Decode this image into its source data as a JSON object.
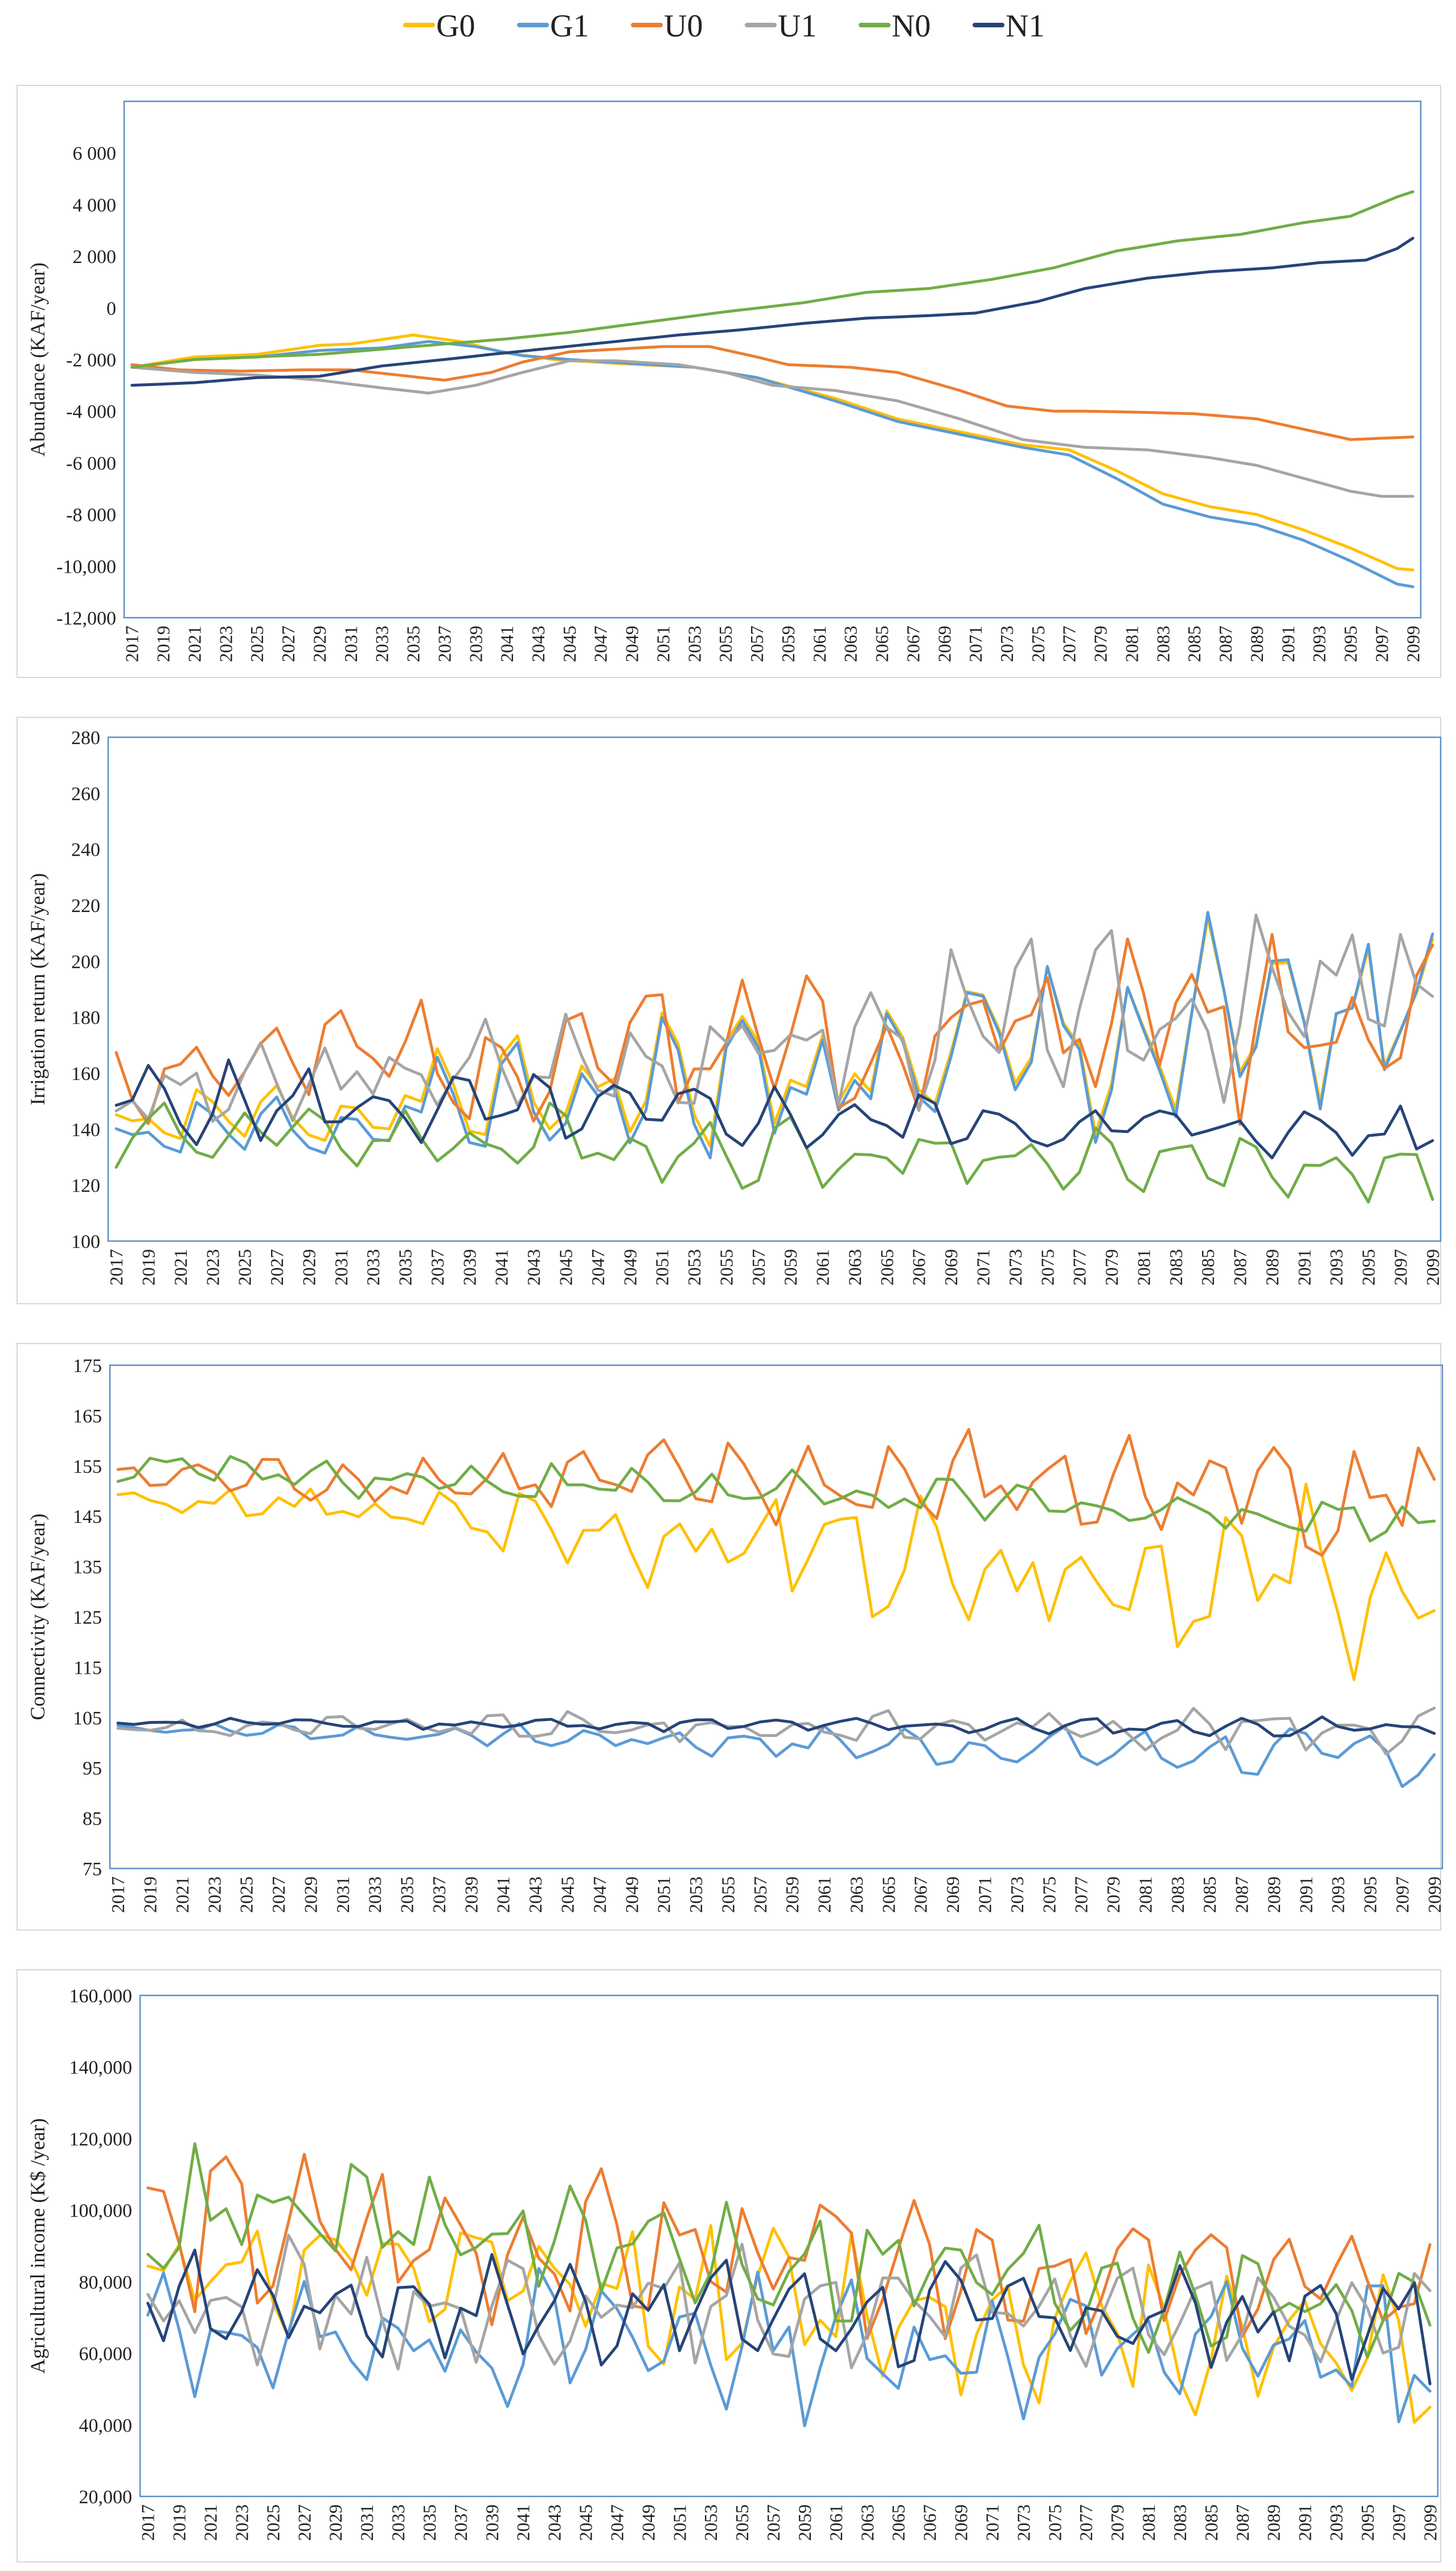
{
  "legend": [
    {
      "name": "G0",
      "color": "#FFC000"
    },
    {
      "name": "G1",
      "color": "#5B9BD5"
    },
    {
      "name": "U0",
      "color": "#ED7D31"
    },
    {
      "name": "U1",
      "color": "#A5A5A5"
    },
    {
      "name": "N0",
      "color": "#70AD47"
    },
    {
      "name": "N1",
      "color": "#264478"
    }
  ],
  "chart_data": [
    {
      "id": "abundance",
      "type": "line",
      "title": "",
      "xlabel": "",
      "ylabel": "Abundance (KAF/year)",
      "x_start": 2017,
      "x_end": 2099,
      "x_tick_labels": [
        "2017",
        "2019",
        "2021",
        "2023",
        "2025",
        "2027",
        "2029",
        "2031",
        "2033",
        "2035",
        "2037",
        "2039",
        "2041",
        "2043",
        "2045",
        "2047",
        "2049",
        "2051",
        "2053",
        "2055",
        "2057",
        "2059",
        "2061",
        "2063",
        "2065",
        "2067",
        "2069",
        "2071",
        "2073",
        "2075",
        "2077",
        "2079",
        "2081",
        "2083",
        "2085",
        "2087",
        "2089",
        "2091",
        "2093",
        "2095",
        "2097",
        "2099"
      ],
      "ylim": [
        -12000,
        8000
      ],
      "y_ticks": [
        6000,
        4000,
        2000,
        0,
        -2000,
        -4000,
        -6000,
        -8000,
        -10000,
        -12000
      ],
      "y_tick_labels": [
        "6 000",
        "4 000",
        "2 000",
        "0",
        "-2 000",
        "-4 000",
        "-6 000",
        "-8 000",
        "-10,000",
        "-12,000"
      ],
      "series_points": [
        {
          "name": "G0",
          "points": [
            [
              2017,
              -2300
            ],
            [
              2021,
              -1900
            ],
            [
              2025,
              -1800
            ],
            [
              2029,
              -1450
            ],
            [
              2031,
              -1400
            ],
            [
              2035,
              -1050
            ],
            [
              2038,
              -1300
            ],
            [
              2041,
              -1750
            ],
            [
              2044,
              -2000
            ],
            [
              2048,
              -2150
            ],
            [
              2053,
              -2300
            ],
            [
              2057,
              -2700
            ],
            [
              2062,
              -3500
            ],
            [
              2066,
              -4300
            ],
            [
              2070,
              -4800
            ],
            [
              2074,
              -5300
            ],
            [
              2077,
              -5500
            ],
            [
              2080,
              -6300
            ],
            [
              2083,
              -7200
            ],
            [
              2086,
              -7700
            ],
            [
              2089,
              -8000
            ],
            [
              2092,
              -8600
            ],
            [
              2095,
              -9300
            ],
            [
              2098,
              -10100
            ],
            [
              2099,
              -10150
            ]
          ]
        },
        {
          "name": "G1",
          "points": [
            [
              2017,
              -2300
            ],
            [
              2021,
              -2000
            ],
            [
              2025,
              -1900
            ],
            [
              2029,
              -1650
            ],
            [
              2033,
              -1550
            ],
            [
              2036,
              -1300
            ],
            [
              2039,
              -1500
            ],
            [
              2042,
              -1850
            ],
            [
              2045,
              -2000
            ],
            [
              2049,
              -2150
            ],
            [
              2053,
              -2300
            ],
            [
              2057,
              -2700
            ],
            [
              2062,
              -3600
            ],
            [
              2066,
              -4400
            ],
            [
              2070,
              -4900
            ],
            [
              2074,
              -5400
            ],
            [
              2077,
              -5700
            ],
            [
              2080,
              -6600
            ],
            [
              2083,
              -7600
            ],
            [
              2086,
              -8100
            ],
            [
              2089,
              -8400
            ],
            [
              2092,
              -9000
            ],
            [
              2095,
              -9800
            ],
            [
              2098,
              -10700
            ],
            [
              2099,
              -10800
            ]
          ]
        },
        {
          "name": "U0",
          "points": [
            [
              2017,
              -2200
            ],
            [
              2020,
              -2400
            ],
            [
              2024,
              -2450
            ],
            [
              2028,
              -2400
            ],
            [
              2031,
              -2400
            ],
            [
              2034,
              -2600
            ],
            [
              2037,
              -2800
            ],
            [
              2040,
              -2500
            ],
            [
              2042,
              -2100
            ],
            [
              2045,
              -1700
            ],
            [
              2048,
              -1600
            ],
            [
              2051,
              -1500
            ],
            [
              2054,
              -1500
            ],
            [
              2057,
              -1900
            ],
            [
              2059,
              -2200
            ],
            [
              2063,
              -2300
            ],
            [
              2066,
              -2500
            ],
            [
              2070,
              -3200
            ],
            [
              2073,
              -3800
            ],
            [
              2076,
              -4000
            ],
            [
              2078,
              -4000
            ],
            [
              2082,
              -4050
            ],
            [
              2085,
              -4100
            ],
            [
              2089,
              -4300
            ],
            [
              2092,
              -4700
            ],
            [
              2095,
              -5100
            ],
            [
              2099,
              -5000
            ]
          ]
        },
        {
          "name": "U1",
          "points": [
            [
              2017,
              -2300
            ],
            [
              2021,
              -2500
            ],
            [
              2025,
              -2600
            ],
            [
              2029,
              -2800
            ],
            [
              2033,
              -3100
            ],
            [
              2036,
              -3300
            ],
            [
              2039,
              -3000
            ],
            [
              2042,
              -2500
            ],
            [
              2045,
              -2050
            ],
            [
              2048,
              -2050
            ],
            [
              2052,
              -2200
            ],
            [
              2055,
              -2500
            ],
            [
              2058,
              -3000
            ],
            [
              2062,
              -3200
            ],
            [
              2066,
              -3600
            ],
            [
              2070,
              -4300
            ],
            [
              2074,
              -5100
            ],
            [
              2078,
              -5400
            ],
            [
              2082,
              -5500
            ],
            [
              2086,
              -5800
            ],
            [
              2089,
              -6100
            ],
            [
              2092,
              -6600
            ],
            [
              2095,
              -7100
            ],
            [
              2097,
              -7300
            ],
            [
              2099,
              -7300
            ]
          ]
        },
        {
          "name": "N0",
          "points": [
            [
              2017,
              -2300
            ],
            [
              2021,
              -2000
            ],
            [
              2025,
              -1900
            ],
            [
              2029,
              -1800
            ],
            [
              2033,
              -1600
            ],
            [
              2037,
              -1400
            ],
            [
              2041,
              -1200
            ],
            [
              2045,
              -950
            ],
            [
              2050,
              -550
            ],
            [
              2055,
              -150
            ],
            [
              2060,
              200
            ],
            [
              2064,
              600
            ],
            [
              2068,
              750
            ],
            [
              2072,
              1100
            ],
            [
              2076,
              1550
            ],
            [
              2080,
              2200
            ],
            [
              2084,
              2600
            ],
            [
              2088,
              2850
            ],
            [
              2092,
              3300
            ],
            [
              2095,
              3550
            ],
            [
              2098,
              4300
            ],
            [
              2099,
              4500
            ]
          ]
        },
        {
          "name": "N1",
          "points": [
            [
              2017,
              -3000
            ],
            [
              2021,
              -2900
            ],
            [
              2025,
              -2700
            ],
            [
              2029,
              -2650
            ],
            [
              2033,
              -2250
            ],
            [
              2037,
              -2000
            ],
            [
              2040,
              -1800
            ],
            [
              2044,
              -1550
            ],
            [
              2048,
              -1300
            ],
            [
              2052,
              -1050
            ],
            [
              2056,
              -850
            ],
            [
              2060,
              -600
            ],
            [
              2064,
              -400
            ],
            [
              2068,
              -300
            ],
            [
              2071,
              -200
            ],
            [
              2075,
              250
            ],
            [
              2078,
              750
            ],
            [
              2082,
              1150
            ],
            [
              2086,
              1400
            ],
            [
              2090,
              1550
            ],
            [
              2093,
              1750
            ],
            [
              2096,
              1850
            ],
            [
              2098,
              2300
            ],
            [
              2099,
              2700
            ]
          ]
        }
      ]
    },
    {
      "id": "irrigation",
      "type": "line",
      "title": "",
      "xlabel": "",
      "ylabel": "Irrigation return (KAF/year)",
      "x_start": 2017,
      "x_end": 2099,
      "x_tick_labels": [
        "2017",
        "2019",
        "2021",
        "2023",
        "2025",
        "2027",
        "2029",
        "2031",
        "2033",
        "2035",
        "2037",
        "2039",
        "2041",
        "2043",
        "2045",
        "2047",
        "2049",
        "2051",
        "2053",
        "2055",
        "2057",
        "2059",
        "2061",
        "2063",
        "2065",
        "2067",
        "2069",
        "2071",
        "2073",
        "2075",
        "2077",
        "2079",
        "2081",
        "2083",
        "2085",
        "2087",
        "2089",
        "2091",
        "2093",
        "2095",
        "2097",
        "2099"
      ],
      "ylim": [
        100,
        280
      ],
      "y_ticks": [
        280,
        260,
        240,
        220,
        200,
        180,
        160,
        140,
        120,
        100
      ],
      "y_tick_labels": [
        "280",
        "260",
        "240",
        "220",
        "200",
        "180",
        "160",
        "140",
        "120",
        "100"
      ],
      "model": "seasonal",
      "series_params": [
        {
          "name": "G0",
          "base_start": 140,
          "base_end": 180,
          "amp_start": 10,
          "amp_end": 45,
          "seed": 1
        },
        {
          "name": "G1",
          "base_start": 135,
          "base_end": 180,
          "amp_start": 10,
          "amp_end": 48,
          "seed": 1
        },
        {
          "name": "U0",
          "base_start": 160,
          "base_end": 185,
          "amp_start": 20,
          "amp_end": 40,
          "seed": 2
        },
        {
          "name": "U1",
          "base_start": 150,
          "base_end": 190,
          "amp_start": 15,
          "amp_end": 35,
          "seed": 3
        },
        {
          "name": "N0",
          "base_start": 140,
          "base_end": 125,
          "amp_start": 15,
          "amp_end": 12,
          "seed": 4
        },
        {
          "name": "N1",
          "base_start": 150,
          "base_end": 138,
          "amp_start": 15,
          "amp_end": 10,
          "seed": 5
        }
      ]
    },
    {
      "id": "connectivity",
      "type": "line",
      "title": "",
      "xlabel": "",
      "ylabel": "Connectivity (KAF/year)",
      "x_start": 2017,
      "x_end": 2099,
      "x_tick_labels": [
        "2017",
        "2019",
        "2021",
        "2023",
        "2025",
        "2027",
        "2029",
        "2031",
        "2033",
        "2035",
        "2037",
        "2039",
        "2041",
        "2043",
        "2045",
        "2047",
        "2049",
        "2051",
        "2053",
        "2055",
        "2057",
        "2059",
        "2061",
        "2063",
        "2065",
        "2067",
        "2069",
        "2071",
        "2073",
        "2075",
        "2077",
        "2079",
        "2081",
        "2083",
        "2085",
        "2087",
        "2089",
        "2091",
        "2093",
        "2095",
        "2097",
        "2099"
      ],
      "ylim": [
        75,
        175
      ],
      "y_ticks": [
        175,
        165,
        155,
        145,
        135,
        125,
        115,
        105,
        95,
        85,
        75
      ],
      "y_tick_labels": [
        "175",
        "165",
        "155",
        "145",
        "135",
        "125",
        "115",
        "105",
        "95",
        "85",
        "75"
      ],
      "model": "seasonal",
      "series_params": [
        {
          "name": "G0",
          "base_start": 149,
          "base_end": 130,
          "amp_start": 3,
          "amp_end": 22,
          "seed": 6
        },
        {
          "name": "G1",
          "base_start": 103,
          "base_end": 97,
          "amp_start": 1,
          "amp_end": 6,
          "seed": 7
        },
        {
          "name": "U0",
          "base_start": 153,
          "base_end": 150,
          "amp_start": 3,
          "amp_end": 16,
          "seed": 8
        },
        {
          "name": "U1",
          "base_start": 103,
          "base_end": 103,
          "amp_start": 2,
          "amp_end": 5,
          "seed": 9
        },
        {
          "name": "N0",
          "base_start": 155,
          "base_end": 144,
          "amp_start": 4,
          "amp_end": 5,
          "seed": 10
        },
        {
          "name": "N1",
          "base_start": 104,
          "base_end": 103,
          "amp_start": 1,
          "amp_end": 2,
          "seed": 11
        }
      ]
    },
    {
      "id": "income",
      "type": "line",
      "title": "",
      "xlabel": "",
      "ylabel": "Agricultural income (K$ /year)",
      "x_start": 2017,
      "x_end": 2099,
      "x_tick_labels": [
        "2017",
        "2019",
        "2021",
        "2023",
        "2025",
        "2027",
        "2029",
        "2031",
        "2033",
        "2035",
        "2037",
        "2039",
        "2041",
        "2043",
        "2045",
        "2047",
        "2049",
        "2051",
        "2053",
        "2055",
        "2057",
        "2059",
        "2061",
        "2063",
        "2065",
        "2067",
        "2069",
        "2071",
        "2073",
        "2075",
        "2077",
        "2079",
        "2081",
        "2083",
        "2085",
        "2087",
        "2089",
        "2091",
        "2093",
        "2095",
        "2097",
        "2099"
      ],
      "ylim": [
        20000,
        160000
      ],
      "y_ticks": [
        160000,
        140000,
        120000,
        100000,
        80000,
        60000,
        40000,
        20000
      ],
      "y_tick_labels": [
        "160,000",
        "140,000",
        "120,000",
        "100,000",
        "80,000",
        "60,000",
        "40,000",
        "20,000"
      ],
      "model": "seasonal",
      "series_params": [
        {
          "name": "G0",
          "base_start": 85000,
          "base_end": 62000,
          "amp_start": 20000,
          "amp_end": 25000,
          "seed": 12
        },
        {
          "name": "G1",
          "base_start": 65000,
          "base_end": 60000,
          "amp_start": 18000,
          "amp_end": 25000,
          "seed": 13
        },
        {
          "name": "U0",
          "base_start": 95000,
          "base_end": 78000,
          "amp_start": 25000,
          "amp_end": 15000,
          "seed": 14
        },
        {
          "name": "U1",
          "base_start": 75000,
          "base_end": 70000,
          "amp_start": 18000,
          "amp_end": 15000,
          "seed": 15
        },
        {
          "name": "N0",
          "base_start": 100000,
          "base_end": 72000,
          "amp_start": 20000,
          "amp_end": 18000,
          "seed": 16
        },
        {
          "name": "N1",
          "base_start": 75000,
          "base_end": 68000,
          "amp_start": 15000,
          "amp_end": 18000,
          "seed": 17
        }
      ]
    }
  ]
}
